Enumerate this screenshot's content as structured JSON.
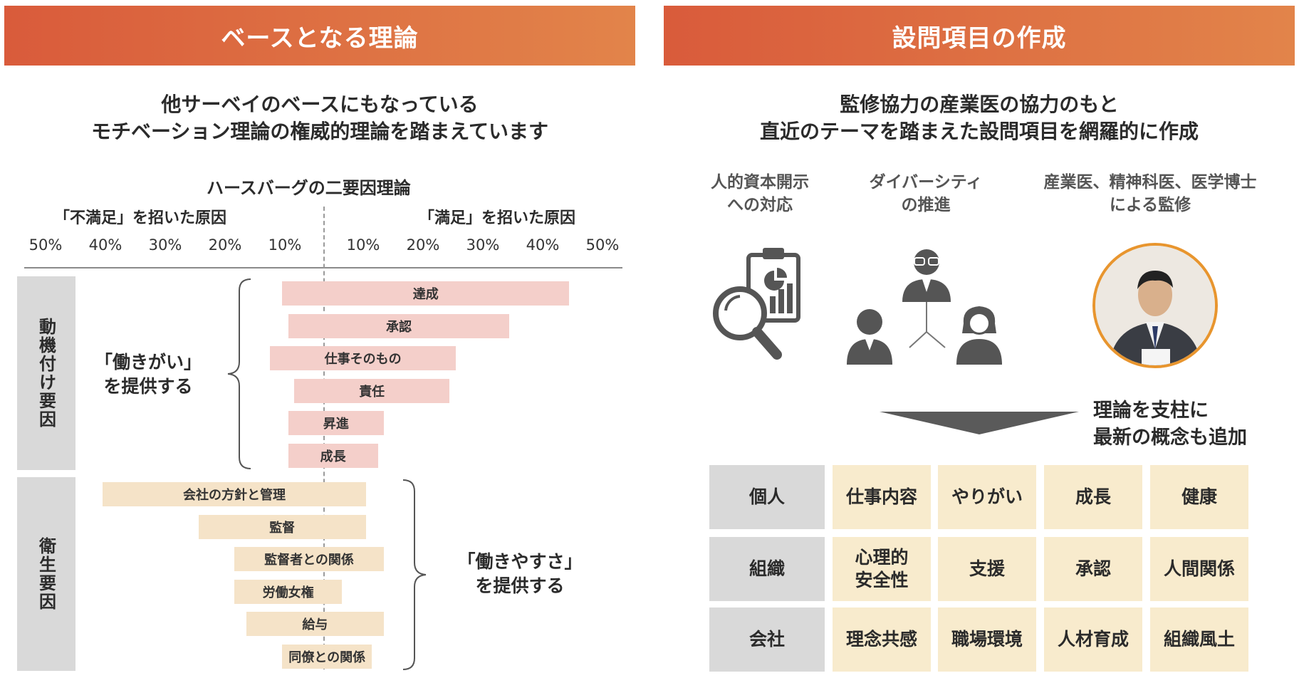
{
  "left": {
    "banner": "ベースとなる理論",
    "headline": [
      "他サーベイのベースにもなっている",
      "モチベーション理論の権威的理論を踏まえています"
    ],
    "chart_title": "ハースバーグの二要因理論",
    "left_caption": "「不満足」を招いた原因",
    "right_caption": "「満足」を招いた原因",
    "left_ticks": [
      "50%",
      "40%",
      "30%",
      "20%",
      "10%"
    ],
    "right_ticks": [
      "10%",
      "20%",
      "30%",
      "40%",
      "50%"
    ],
    "motivators_label": "動機付け要因",
    "hygiene_label": "衛生要因",
    "motivators_note": [
      "「働きがい」",
      "を提供する"
    ],
    "hygiene_note": [
      "「働きやすさ」",
      "を提供する"
    ]
  },
  "chart_data": {
    "type": "bar",
    "title": "ハースバーグの二要因理論",
    "xlabel": "",
    "ylabel": "",
    "axis_ticks": [
      "50%",
      "40%",
      "30%",
      "20%",
      "10%",
      "10%",
      "20%",
      "30%",
      "40%",
      "50%"
    ],
    "xlim": [
      -50,
      50
    ],
    "series": [
      {
        "name": "動機付け要因",
        "color": "#f4cfca",
        "items": [
          {
            "label": "達成",
            "dissatisfaction": 7,
            "satisfaction": 41
          },
          {
            "label": "承認",
            "dissatisfaction": 6,
            "satisfaction": 31
          },
          {
            "label": "仕事そのもの",
            "dissatisfaction": 9,
            "satisfaction": 22
          },
          {
            "label": "責任",
            "dissatisfaction": 5,
            "satisfaction": 21
          },
          {
            "label": "昇進",
            "dissatisfaction": 6,
            "satisfaction": 10
          },
          {
            "label": "成長",
            "dissatisfaction": 6,
            "satisfaction": 9
          }
        ]
      },
      {
        "name": "衛生要因",
        "color": "#f5e3c8",
        "items": [
          {
            "label": "会社の方針と管理",
            "dissatisfaction": 37,
            "satisfaction": 7
          },
          {
            "label": "監督",
            "dissatisfaction": 21,
            "satisfaction": 7
          },
          {
            "label": "監督者との関係",
            "dissatisfaction": 15,
            "satisfaction": 10
          },
          {
            "label": "労働女権",
            "dissatisfaction": 15,
            "satisfaction": 3
          },
          {
            "label": "給与",
            "dissatisfaction": 13,
            "satisfaction": 10
          },
          {
            "label": "同僚との関係",
            "dissatisfaction": 7,
            "satisfaction": 8
          }
        ]
      }
    ]
  },
  "right": {
    "banner": "設問項目の作成",
    "headline": [
      "監修協力の産業医の協力のもと",
      "直近のテーマを踏まえた設問項目を網羅的に作成"
    ],
    "categories": [
      {
        "lines": [
          "人的資本開示",
          "への対応"
        ],
        "icon": "clipboard-chart-magnifier-icon"
      },
      {
        "lines": [
          "ダイバーシティ",
          "の推進"
        ],
        "icon": "diverse-people-icon"
      },
      {
        "lines": [
          "産業医、精神科医、医学博士",
          "による監修"
        ],
        "icon": "doctor-portrait"
      }
    ],
    "arrow_note": [
      "理論を支柱に",
      "最新の概念も追加"
    ],
    "grid": [
      {
        "head": "個人",
        "cells": [
          "仕事内容",
          "やりがい",
          "成長",
          "健康"
        ]
      },
      {
        "head": "組織",
        "cells": [
          "心理的\n安全性",
          "支援",
          "承認",
          "人間関係"
        ]
      },
      {
        "head": "会社",
        "cells": [
          "理念共感",
          "職場環境",
          "人材育成",
          "組織風土"
        ]
      }
    ]
  }
}
